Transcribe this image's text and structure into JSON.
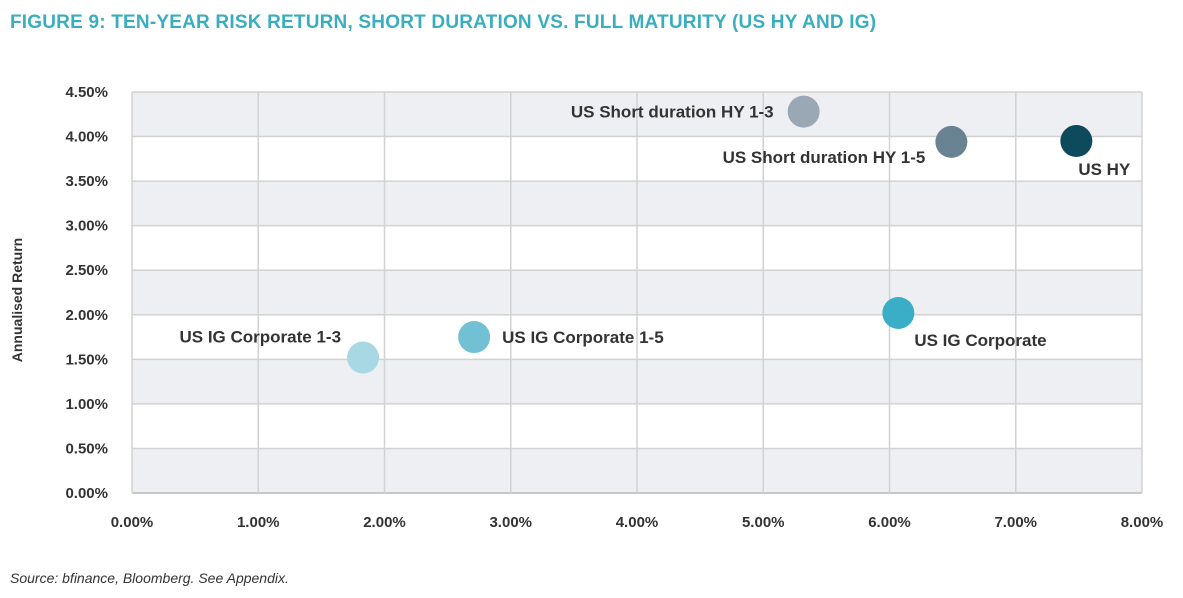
{
  "title": "FIGURE 9: TEN-YEAR RISK RETURN, SHORT DURATION VS. FULL MATURITY (US HY AND IG)",
  "source": "Source: bfinance, Bloomberg. See Appendix.",
  "chart_data": {
    "type": "scatter",
    "title": "FIGURE 9: TEN-YEAR RISK RETURN, SHORT DURATION VS. FULL MATURITY (US HY AND IG)",
    "xlabel": "",
    "ylabel": "Annualised Return",
    "xlim": [
      0,
      8
    ],
    "ylim": [
      0,
      4.5
    ],
    "x_ticks": [
      "0.00%",
      "1.00%",
      "2.00%",
      "3.00%",
      "4.00%",
      "5.00%",
      "6.00%",
      "7.00%",
      "8.00%"
    ],
    "y_ticks": [
      "0.00%",
      "0.50%",
      "1.00%",
      "1.50%",
      "2.00%",
      "2.50%",
      "3.00%",
      "3.50%",
      "4.00%",
      "4.50%"
    ],
    "grid": true,
    "points": [
      {
        "label": "US Short duration HY 1-3",
        "x": 5.32,
        "y": 4.28,
        "color": "#9aa8b5"
      },
      {
        "label": "US Short duration HY 1-5",
        "x": 6.49,
        "y": 3.94,
        "color": "#6a8393"
      },
      {
        "label": "US HY",
        "x": 7.48,
        "y": 3.95,
        "color": "#0d4a5c"
      },
      {
        "label": "US IG Corporate",
        "x": 6.07,
        "y": 2.02,
        "color": "#3aaec7"
      },
      {
        "label": "US IG Corporate 1-5",
        "x": 2.71,
        "y": 1.75,
        "color": "#72c0d4"
      },
      {
        "label": "US IG Corporate 1-3",
        "x": 1.83,
        "y": 1.52,
        "color": "#a9d8e5"
      }
    ]
  }
}
